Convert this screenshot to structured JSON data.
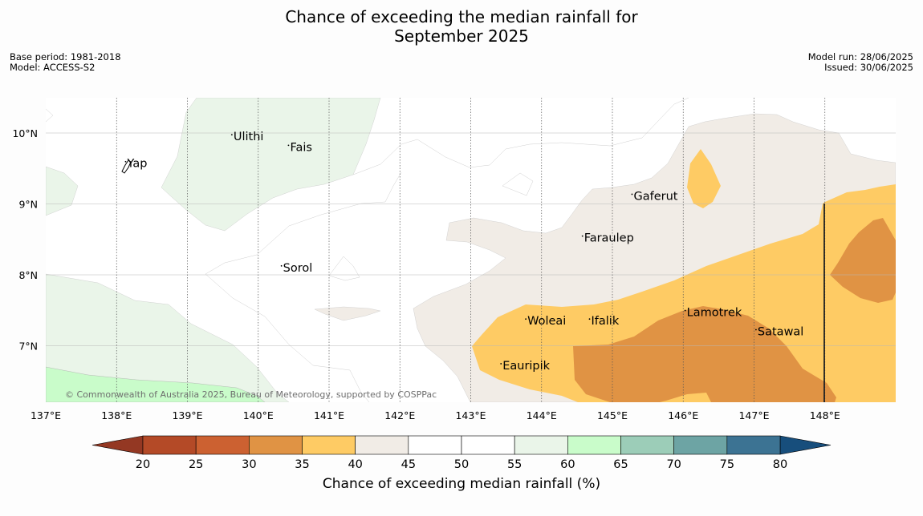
{
  "title_line1": "Chance of exceeding the median rainfall for",
  "title_line2": "September 2025",
  "base_period": "Base period: 1981-2018",
  "model": "Model: ACCESS-S2",
  "model_run": "Model run: 28/06/2025",
  "issued": "Issued: 30/06/2025",
  "copyright": "© Commonwealth of Australia 2025, Bureau of Meteorology, supported by COSPPac",
  "colorbar_label": "Chance of exceeding median rainfall (%)",
  "colorbar": {
    "ticks": [
      "20",
      "25",
      "30",
      "35",
      "40",
      "45",
      "50",
      "55",
      "60",
      "65",
      "70",
      "75",
      "80"
    ],
    "colors": [
      "#b44a27",
      "#cc6131",
      "#e09344",
      "#fecb64",
      "#f1ece6",
      "#ffffff",
      "#ffffff",
      "#eaf5e9",
      "#c9fcca",
      "#9ccdb8",
      "#6da4a4",
      "#3c7393"
    ],
    "under_color": "#943823",
    "over_color": "#174e7c"
  },
  "map": {
    "lon_range": [
      137,
      149
    ],
    "lat_range": [
      6.2,
      10.5
    ],
    "lon_ticks": [
      {
        "value": 137,
        "label": "137°E"
      },
      {
        "value": 138,
        "label": "138°E"
      },
      {
        "value": 139,
        "label": "139°E"
      },
      {
        "value": 140,
        "label": "140°E"
      },
      {
        "value": 141,
        "label": "141°E"
      },
      {
        "value": 142,
        "label": "142°E"
      },
      {
        "value": 143,
        "label": "143°E"
      },
      {
        "value": 144,
        "label": "144°E"
      },
      {
        "value": 145,
        "label": "145°E"
      },
      {
        "value": 146,
        "label": "146°E"
      },
      {
        "value": 147,
        "label": "147°E"
      },
      {
        "value": 148,
        "label": "148°E"
      }
    ],
    "lat_ticks": [
      {
        "value": 7,
        "label": "7°N"
      },
      {
        "value": 8,
        "label": "8°N"
      },
      {
        "value": 9,
        "label": "9°N"
      },
      {
        "value": 10,
        "label": "10°N"
      }
    ],
    "places": [
      {
        "id": "yap",
        "name": "Yap",
        "lon": 138.15,
        "lat": 9.52
      },
      {
        "id": "ulithi",
        "name": "Ulithi",
        "lon": 139.65,
        "lat": 9.9
      },
      {
        "id": "fais",
        "name": "Fais",
        "lon": 140.45,
        "lat": 9.75
      },
      {
        "id": "sorol",
        "name": "Sorol",
        "lon": 140.35,
        "lat": 8.05
      },
      {
        "id": "gaferut",
        "name": "Gaferut",
        "lon": 145.3,
        "lat": 9.06
      },
      {
        "id": "faraulep",
        "name": "Faraulep",
        "lon": 144.6,
        "lat": 8.47
      },
      {
        "id": "woleai",
        "name": "Woleai",
        "lon": 143.8,
        "lat": 7.3
      },
      {
        "id": "ifalik",
        "name": "Ifalik",
        "lon": 144.7,
        "lat": 7.3
      },
      {
        "id": "eauripik",
        "name": "Eauripik",
        "lon": 143.45,
        "lat": 6.67
      },
      {
        "id": "lamotrek",
        "name": "Lamotrek",
        "lon": 146.05,
        "lat": 7.42
      },
      {
        "id": "satawal",
        "name": "Satawal",
        "lon": 147.05,
        "lat": 7.15
      }
    ]
  }
}
